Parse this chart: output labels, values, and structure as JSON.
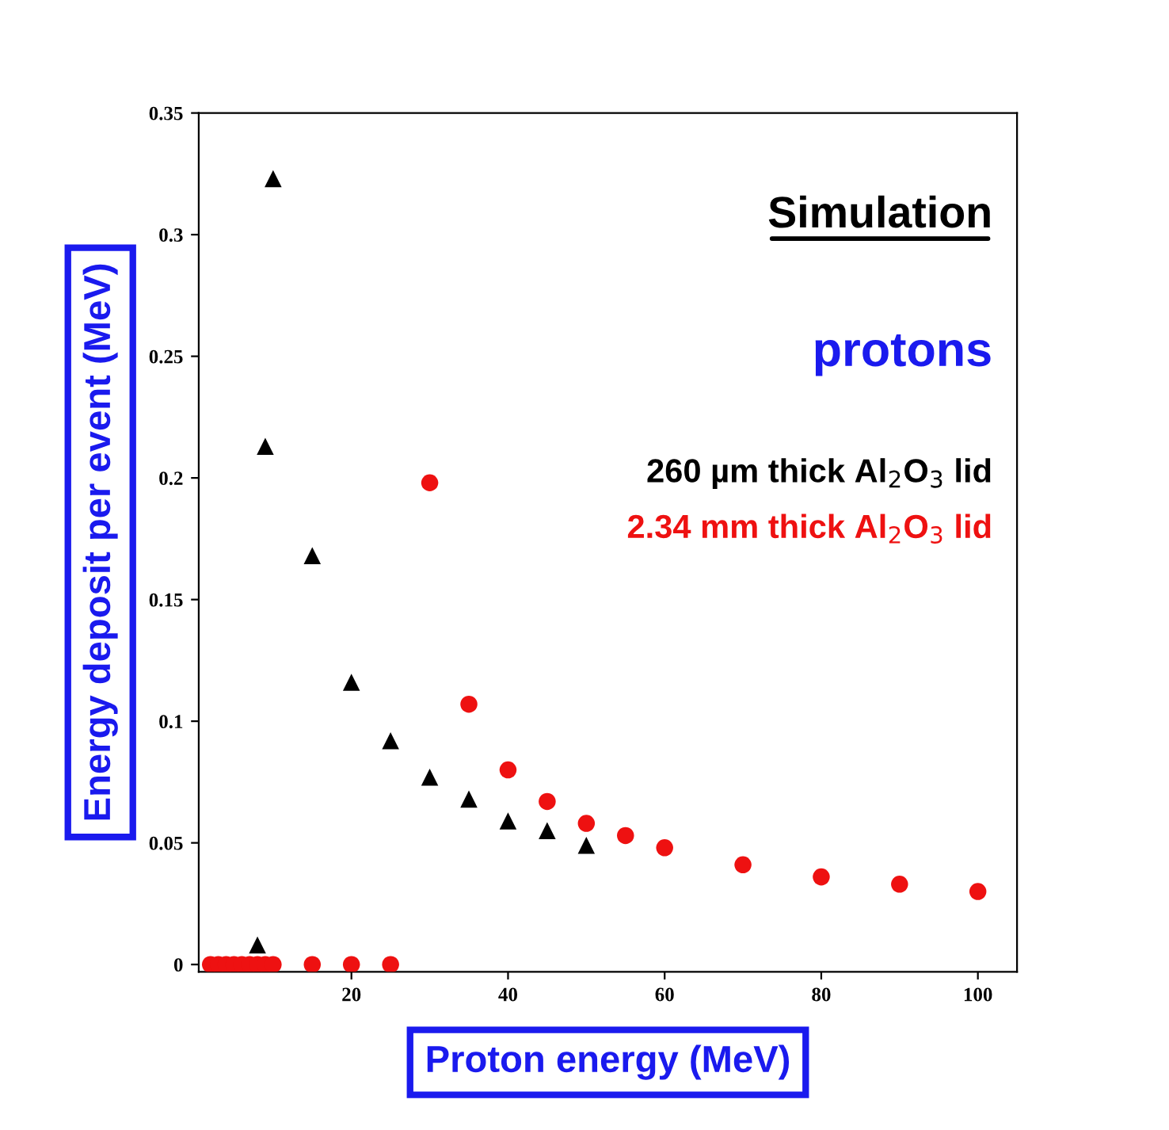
{
  "chart_data": {
    "type": "scatter",
    "xlabel": "Proton energy (MeV)",
    "ylabel": "Energy deposit per event (MeV)",
    "annotations": [
      "Simulation",
      "protons"
    ],
    "xlim": [
      0.5,
      105
    ],
    "xticks": [
      20,
      40,
      60,
      80,
      100
    ],
    "ylim": [
      -0.003,
      0.35
    ],
    "yticks": [
      0,
      0.05,
      0.1,
      0.15,
      0.2,
      0.25,
      0.3,
      0.35
    ],
    "grid": false,
    "legend": false,
    "series": [
      {
        "name": "260 µm thick Al$_{2}$O$_{3}$ lid",
        "color": "#000000",
        "marker": "triangle",
        "x": [
          8,
          9,
          10,
          15,
          20,
          25,
          30,
          35,
          40,
          45,
          50
        ],
        "values": [
          0.008,
          0.213,
          0.323,
          0.168,
          0.116,
          0.092,
          0.077,
          0.068,
          0.059,
          0.055,
          0.049
        ]
      },
      {
        "name": "2.34 mm thick Al$_{2}$O$_{3}$ lid",
        "color": "#ee1111",
        "marker": "circle",
        "x": [
          2,
          3,
          4,
          5,
          6,
          7,
          8,
          9,
          10,
          15,
          20,
          25,
          30,
          35,
          40,
          45,
          50,
          55,
          60,
          70,
          80,
          90,
          100
        ],
        "values": [
          0,
          0,
          0,
          0,
          0,
          0,
          0,
          0,
          0,
          0,
          0,
          0,
          0.198,
          0.107,
          0.08,
          0.067,
          0.058,
          0.053,
          0.048,
          0.041,
          0.036,
          0.033,
          0.03
        ]
      }
    ]
  }
}
